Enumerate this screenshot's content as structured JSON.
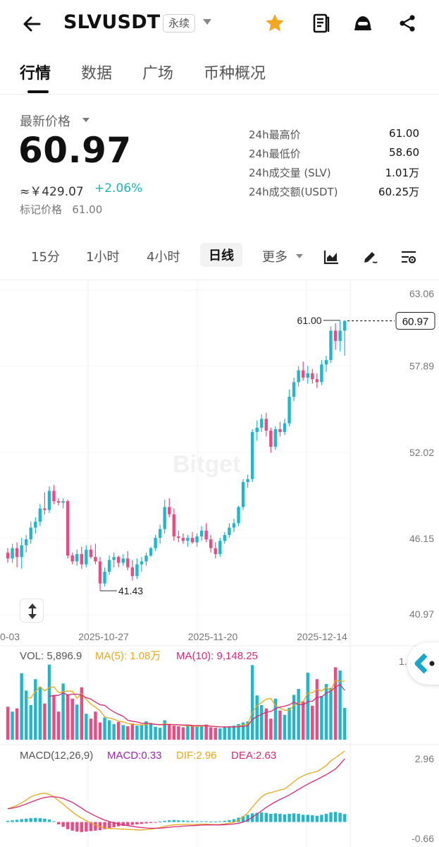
{
  "header": {
    "symbol": "SLVUSDT",
    "contract_type": "永续",
    "icons": [
      "back-arrow-icon",
      "star-icon",
      "orders-icon",
      "bot-icon",
      "share-icon"
    ]
  },
  "tabs": [
    {
      "label": "行情",
      "active": true
    },
    {
      "label": "数据",
      "active": false
    },
    {
      "label": "广场",
      "active": false
    },
    {
      "label": "币种概况",
      "active": false
    }
  ],
  "price": {
    "latest_label": "最新价格",
    "last": "60.97",
    "cny": "≈￥429.07",
    "change": "+2.06%",
    "mark_label": "标记价格",
    "mark_value": "61.00"
  },
  "stats": [
    {
      "label": "24h最高价",
      "value": "61.00"
    },
    {
      "label": "24h最低价",
      "value": "58.60"
    },
    {
      "label": "24h成交量 (SLV)",
      "value": "1.01万"
    },
    {
      "label": "24h成交额(USDT)",
      "value": "60.25万"
    }
  ],
  "intervals": [
    {
      "label": "15分",
      "active": false
    },
    {
      "label": "1小时",
      "active": false
    },
    {
      "label": "4小时",
      "active": false
    },
    {
      "label": "日线",
      "active": true
    },
    {
      "label": "更多",
      "active": false
    }
  ],
  "colors": {
    "up": "#22b6c8",
    "down": "#e94b82",
    "ma5": "#e6a91a",
    "ma10": "#d6287a",
    "dif": "#e6a91a",
    "dea": "#d6287a",
    "macd_label": "#9b27b0"
  },
  "chart_data": {
    "type": "candlestick",
    "price_axis_labels": [
      "63.06",
      "57.89",
      "52.02",
      "46.15",
      "40.97"
    ],
    "price_ylim": [
      40.97,
      63.06
    ],
    "date_labels": [
      "0-03",
      "2025-10-27",
      "2025-11-20",
      "2025-12-14"
    ],
    "watermark": "Bitget",
    "high_annotation": "61.00",
    "low_annotation": "41.43",
    "last_price_tag": "60.97",
    "candles": [
      [
        45.2,
        45.5,
        44.5,
        44.8
      ],
      [
        44.8,
        45.8,
        44.5,
        45.5
      ],
      [
        45.5,
        45.9,
        44.2,
        44.9
      ],
      [
        44.9,
        46.2,
        44.1,
        45.7
      ],
      [
        45.7,
        46.4,
        45.2,
        46.1
      ],
      [
        46.1,
        47.3,
        45.8,
        46.9
      ],
      [
        46.9,
        47.6,
        46.5,
        47.3
      ],
      [
        47.3,
        48.5,
        47.0,
        48.2
      ],
      [
        48.2,
        49.3,
        47.8,
        48.1
      ],
      [
        48.1,
        49.7,
        47.9,
        49.4
      ],
      [
        49.4,
        49.8,
        48.5,
        48.7
      ],
      [
        48.7,
        48.9,
        48.4,
        48.6
      ],
      [
        48.6,
        48.9,
        48.2,
        48.7
      ],
      [
        48.7,
        48.8,
        44.8,
        45.0
      ],
      [
        45.0,
        45.2,
        44.4,
        44.6
      ],
      [
        44.6,
        45.4,
        44.3,
        45.1
      ],
      [
        45.1,
        45.6,
        44.1,
        44.4
      ],
      [
        44.4,
        45.7,
        44.2,
        45.4
      ],
      [
        45.4,
        45.7,
        44.8,
        44.9
      ],
      [
        44.9,
        45.8,
        44.4,
        44.6
      ],
      [
        44.6,
        44.9,
        42.6,
        43.1
      ],
      [
        43.1,
        44.2,
        42.9,
        43.9
      ],
      [
        43.9,
        45.0,
        43.7,
        44.7
      ],
      [
        44.7,
        45.2,
        44.2,
        44.9
      ],
      [
        44.9,
        45.0,
        44.2,
        44.5
      ],
      [
        44.5,
        45.1,
        44.3,
        44.8
      ],
      [
        44.8,
        45.3,
        44.0,
        44.2
      ],
      [
        44.2,
        44.7,
        43.3,
        43.6
      ],
      [
        43.6,
        44.8,
        43.4,
        44.4
      ],
      [
        44.4,
        44.9,
        43.9,
        44.6
      ],
      [
        44.6,
        45.2,
        44.3,
        45.0
      ],
      [
        45.0,
        45.6,
        44.9,
        45.5
      ],
      [
        45.5,
        46.4,
        45.3,
        46.2
      ],
      [
        46.2,
        47.1,
        45.8,
        46.8
      ],
      [
        46.8,
        48.8,
        46.5,
        48.3
      ],
      [
        48.3,
        48.9,
        47.6,
        47.8
      ],
      [
        47.8,
        48.2,
        46.0,
        46.3
      ],
      [
        46.3,
        46.7,
        45.9,
        46.2
      ],
      [
        46.2,
        46.5,
        45.8,
        46.0
      ],
      [
        46.0,
        46.4,
        45.6,
        46.2
      ],
      [
        46.2,
        46.6,
        45.8,
        45.9
      ],
      [
        45.9,
        46.5,
        45.6,
        46.3
      ],
      [
        46.3,
        47.0,
        46.0,
        46.7
      ],
      [
        46.7,
        47.2,
        45.9,
        46.1
      ],
      [
        46.1,
        46.4,
        45.2,
        45.5
      ],
      [
        45.5,
        45.9,
        44.8,
        45.1
      ],
      [
        45.1,
        46.2,
        44.9,
        46.0
      ],
      [
        46.0,
        46.6,
        45.8,
        46.4
      ],
      [
        46.4,
        47.2,
        46.2,
        46.9
      ],
      [
        46.9,
        47.5,
        46.6,
        47.2
      ],
      [
        47.2,
        48.4,
        47.0,
        48.3
      ],
      [
        48.3,
        50.2,
        48.1,
        50.0
      ],
      [
        50.0,
        50.5,
        49.6,
        50.2
      ],
      [
        50.2,
        53.6,
        50.0,
        53.4
      ],
      [
        53.4,
        54.2,
        52.8,
        53.7
      ],
      [
        53.7,
        54.6,
        53.4,
        54.3
      ],
      [
        54.3,
        54.7,
        53.1,
        53.5
      ],
      [
        53.5,
        53.7,
        52.0,
        52.4
      ],
      [
        52.4,
        53.8,
        52.2,
        53.6
      ],
      [
        53.6,
        54.1,
        53.1,
        53.4
      ],
      [
        53.4,
        54.3,
        53.2,
        54.0
      ],
      [
        54.0,
        56.3,
        53.8,
        55.8
      ],
      [
        55.8,
        57.1,
        55.5,
        56.8
      ],
      [
        56.8,
        57.9,
        56.5,
        57.6
      ],
      [
        57.6,
        58.2,
        56.9,
        57.1
      ],
      [
        57.1,
        57.9,
        56.7,
        57.4
      ],
      [
        57.4,
        57.7,
        56.7,
        57.0
      ],
      [
        57.0,
        57.4,
        56.4,
        56.8
      ],
      [
        56.8,
        58.3,
        56.6,
        58.0
      ],
      [
        58.0,
        58.6,
        57.5,
        58.3
      ],
      [
        58.3,
        60.6,
        58.1,
        60.3
      ],
      [
        60.3,
        60.8,
        59.0,
        59.6
      ],
      [
        59.6,
        61.0,
        58.9,
        60.3
      ],
      [
        60.3,
        61.0,
        58.6,
        60.97
      ]
    ],
    "volume": {
      "label_vol": "VOL: 5,896.9",
      "label_ma5": "MA(5): 1.08万",
      "label_ma10": "MA(10): 9,148.25",
      "axis_top": "1.45万",
      "ylim": [
        0,
        14500
      ],
      "values": [
        6100,
        5200,
        5800,
        12300,
        9100,
        6400,
        11200,
        9800,
        6700,
        13900,
        8200,
        5200,
        10400,
        8400,
        7600,
        6500,
        9700,
        4800,
        3900,
        5200,
        3200,
        4100,
        3600,
        2900,
        3300,
        2700,
        2500,
        3000,
        2600,
        2800,
        3400,
        3100,
        2400,
        2200,
        3600,
        2900,
        2600,
        2500,
        2300,
        2700,
        2600,
        2400,
        2500,
        2800,
        2300,
        2200,
        2100,
        2400,
        2500,
        2600,
        2900,
        3200,
        3400,
        13800,
        8200,
        6400,
        5800,
        3900,
        7600,
        5400,
        4600,
        5900,
        8300,
        9400,
        7100,
        12400,
        6300,
        11200,
        8100,
        10300,
        9600,
        13400,
        12800,
        5896.9
      ],
      "ma5": [
        null,
        null,
        null,
        null,
        7700,
        7740,
        8940,
        9760,
        9040,
        9620,
        9800,
        8720,
        8860,
        9020,
        8980,
        7660,
        8520,
        7480,
        6600,
        6020,
        5360,
        4220,
        4000,
        3800,
        3420,
        3320,
        3000,
        2880,
        2820,
        2720,
        2860,
        2980,
        2860,
        2780,
        2940,
        2840,
        2740,
        2760,
        2620,
        2600,
        2540,
        2500,
        2500,
        2600,
        2520,
        2440,
        2380,
        2360,
        2300,
        2360,
        2500,
        2720,
        2920,
        5060,
        6300,
        6880,
        7520,
        7620,
        6340,
        5820,
        5460,
        5480,
        6360,
        6720,
        7060,
        8620,
        8700,
        9300,
        9020,
        9660,
        9100,
        11000,
        10840,
        10847
      ],
      "ma10": [
        null,
        null,
        null,
        null,
        null,
        null,
        null,
        null,
        null,
        8000,
        8210,
        8210,
        8670,
        8270,
        8420,
        8430,
        8270,
        7790,
        7510,
        6960,
        6470,
        6360,
        5680,
        5130,
        4700,
        4320,
        3600,
        3420,
        3290,
        3040,
        3060,
        2960,
        2840,
        2770,
        2800,
        2820,
        2810,
        2760,
        2730,
        2720,
        2640,
        2620,
        2620,
        2610,
        2490,
        2420,
        2370,
        2360,
        2380,
        2370,
        2400,
        2500,
        2570,
        3730,
        4290,
        4710,
        5080,
        5230,
        5750,
        6030,
        6200,
        6470,
        6960,
        6550,
        6450,
        7030,
        7120,
        7850,
        7910,
        8580,
        9010,
        9760,
        10210,
        9148
      ]
    },
    "macd": {
      "label_title": "MACD(12,26,9)",
      "label_macd": "MACD:0.33",
      "label_dif": "DIF:2.96",
      "label_dea": "DEA:2.63",
      "axis_top": "2.96",
      "axis_bottom": "-0.66",
      "ylim": [
        -0.66,
        2.96
      ],
      "dif": [
        0.55,
        0.62,
        0.7,
        0.8,
        0.92,
        1.05,
        1.12,
        1.18,
        1.2,
        1.15,
        1.05,
        0.9,
        0.75,
        0.58,
        0.42,
        0.28,
        0.16,
        0.06,
        -0.04,
        -0.12,
        -0.2,
        -0.25,
        -0.27,
        -0.28,
        -0.29,
        -0.3,
        -0.31,
        -0.32,
        -0.33,
        -0.33,
        -0.32,
        -0.3,
        -0.27,
        -0.23,
        -0.18,
        -0.14,
        -0.12,
        -0.11,
        -0.1,
        -0.1,
        -0.1,
        -0.1,
        -0.09,
        -0.09,
        -0.1,
        -0.11,
        -0.1,
        -0.08,
        -0.05,
        -0.01,
        0.08,
        0.22,
        0.38,
        0.62,
        0.85,
        1.05,
        1.18,
        1.22,
        1.28,
        1.33,
        1.38,
        1.52,
        1.68,
        1.83,
        1.92,
        2.01,
        2.06,
        2.1,
        2.22,
        2.35,
        2.55,
        2.68,
        2.82,
        2.96
      ],
      "dea": [
        0.55,
        0.58,
        0.62,
        0.68,
        0.75,
        0.83,
        0.9,
        0.97,
        1.02,
        1.05,
        1.05,
        1.03,
        0.98,
        0.9,
        0.82,
        0.7,
        0.58,
        0.45,
        0.35,
        0.25,
        0.16,
        0.08,
        0.02,
        -0.03,
        -0.08,
        -0.12,
        -0.15,
        -0.18,
        -0.21,
        -0.23,
        -0.25,
        -0.26,
        -0.26,
        -0.26,
        -0.24,
        -0.22,
        -0.2,
        -0.19,
        -0.17,
        -0.16,
        -0.15,
        -0.14,
        -0.13,
        -0.12,
        -0.12,
        -0.12,
        -0.12,
        -0.11,
        -0.1,
        -0.08,
        -0.05,
        0.0,
        0.08,
        0.2,
        0.33,
        0.47,
        0.61,
        0.73,
        0.84,
        0.94,
        1.03,
        1.13,
        1.24,
        1.36,
        1.47,
        1.58,
        1.68,
        1.77,
        1.87,
        1.97,
        2.09,
        2.21,
        2.41,
        2.63
      ],
      "hist": [
        0.05,
        0.07,
        0.09,
        0.12,
        0.14,
        0.16,
        0.17,
        0.16,
        0.14,
        0.1,
        0.03,
        -0.1,
        -0.2,
        -0.3,
        -0.36,
        -0.4,
        -0.42,
        -0.4,
        -0.38,
        -0.36,
        -0.34,
        -0.3,
        -0.26,
        -0.22,
        -0.18,
        -0.16,
        -0.14,
        -0.12,
        -0.1,
        -0.08,
        -0.06,
        -0.04,
        -0.02,
        0.02,
        0.05,
        0.07,
        0.08,
        0.07,
        0.06,
        0.05,
        0.04,
        0.03,
        0.03,
        0.03,
        0.02,
        0.02,
        0.03,
        0.05,
        0.08,
        0.12,
        0.18,
        0.24,
        0.3,
        0.36,
        0.38,
        0.4,
        0.38,
        0.34,
        0.36,
        0.34,
        0.32,
        0.34,
        0.36,
        0.34,
        0.3,
        0.3,
        0.28,
        0.26,
        0.3,
        0.34,
        0.4,
        0.42,
        0.38,
        0.33
      ]
    }
  }
}
